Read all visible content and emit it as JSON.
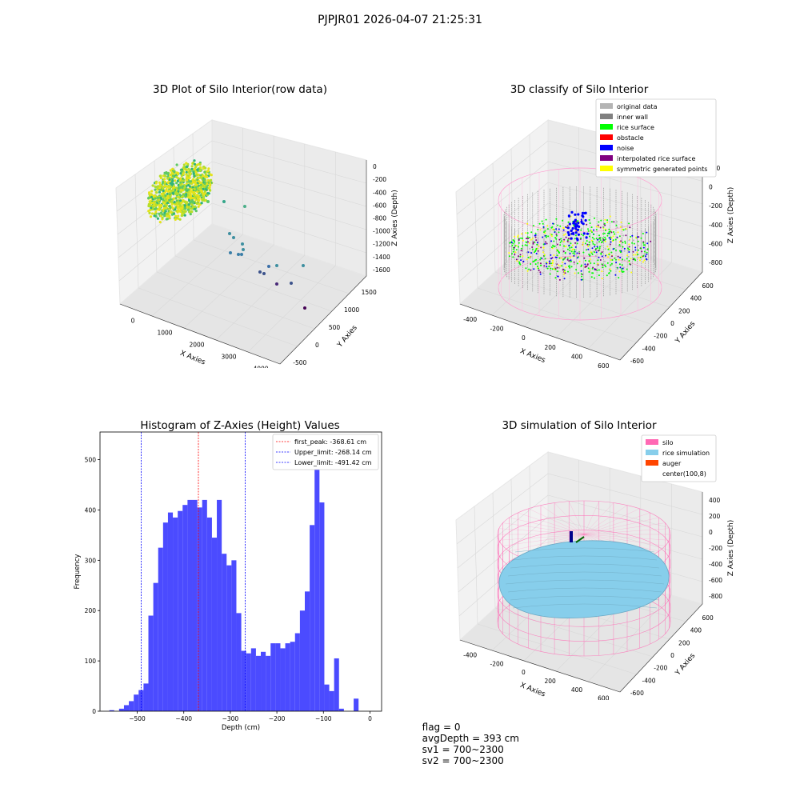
{
  "suptitle": "PJPJR01 2026-04-07 21:25:31",
  "panels": {
    "raw": {
      "title": "3D Plot of Silo Interior(row data)",
      "xlabel": "X Axies",
      "ylabel": "Y Axies",
      "zlabel": "Z Axies (Depth)",
      "xticks": [
        "0",
        "1000",
        "2000",
        "3000",
        "4000"
      ],
      "yticks": [
        "-500",
        "0",
        "500",
        "1000",
        "1500"
      ],
      "zticks": [
        "0",
        "-200",
        "-400",
        "-600",
        "-800",
        "-1000",
        "-1200",
        "-1400",
        "-1600"
      ]
    },
    "classify": {
      "title": "3D classify of Silo Interior",
      "xlabel": "X Axies",
      "ylabel": "Y Axies",
      "zlabel": "Z Axies (Depth)",
      "xticks": [
        "-400",
        "-200",
        "0",
        "200",
        "400",
        "600"
      ],
      "yticks": [
        "-600",
        "-400",
        "-200",
        "0",
        "200",
        "400",
        "600"
      ],
      "zticks": [
        "200",
        "0",
        "-200",
        "-400",
        "-600",
        "-800"
      ],
      "legend": [
        {
          "label": "original data",
          "color": "#b4b4b4"
        },
        {
          "label": "inner wall",
          "color": "#808080"
        },
        {
          "label": "rice surface",
          "color": "#00ff00"
        },
        {
          "label": "obstacle",
          "color": "#ff0000"
        },
        {
          "label": "noise",
          "color": "#0000ff"
        },
        {
          "label": "interpolated rice surface",
          "color": "#800080"
        },
        {
          "label": "symmetric generated points",
          "color": "#ffff00"
        }
      ]
    },
    "simulation": {
      "title": "3D simulation of Silo Interior",
      "xlabel": "X Axies",
      "ylabel": "Y Axies",
      "zlabel": "Z Axies (Depth)",
      "xticks": [
        "-400",
        "-200",
        "0",
        "200",
        "400",
        "600"
      ],
      "yticks": [
        "-600",
        "-400",
        "-200",
        "0",
        "200",
        "400",
        "600"
      ],
      "zticks": [
        "400",
        "200",
        "0",
        "-200",
        "-400",
        "-600",
        "-800"
      ],
      "legend": [
        {
          "label": "silo",
          "color": "#ff69b4"
        },
        {
          "label": "rice simulation",
          "color": "#87ceeb"
        },
        {
          "label": "auger",
          "color": "#ff4500"
        },
        {
          "label": "center(100,8)",
          "color": ""
        }
      ]
    }
  },
  "chart_data": {
    "type": "bar",
    "title": "Histogram of Z-Axies (Height) Values",
    "xlabel": "Depth (cm)",
    "ylabel": "Frequency",
    "xlim": [
      -580,
      25
    ],
    "ylim": [
      0,
      555
    ],
    "xticks": [
      -500,
      -400,
      -300,
      -200,
      -100,
      0
    ],
    "yticks": [
      0,
      100,
      200,
      300,
      400,
      500
    ],
    "bin_width": 10.5,
    "bin_start": -560,
    "values": [
      2,
      0,
      5,
      12,
      20,
      33,
      42,
      55,
      190,
      255,
      325,
      375,
      395,
      385,
      398,
      410,
      420,
      420,
      405,
      420,
      385,
      345,
      420,
      313,
      290,
      300,
      195,
      120,
      115,
      125,
      110,
      118,
      110,
      135,
      135,
      125,
      135,
      138,
      155,
      200,
      238,
      370,
      520,
      415,
      53,
      40,
      105,
      5,
      0,
      0,
      25
    ],
    "color": "#4b4bff",
    "lines": [
      {
        "label": "first_peak: -368.61 cm",
        "x": -368.61,
        "color": "#ff0000"
      },
      {
        "label": "Upper_limit: -268.14 cm",
        "x": -268.14,
        "color": "#0000ff"
      },
      {
        "label": "Lower_limit: -491.42 cm",
        "x": -491.42,
        "color": "#0000ff"
      }
    ],
    "legend_position": "top-right"
  },
  "footer": {
    "flag": "flag = 0",
    "avg_depth": "avgDepth = 393 cm",
    "sv1": "sv1 = 700~2300",
    "sv2": "sv2 = 700~2300"
  }
}
